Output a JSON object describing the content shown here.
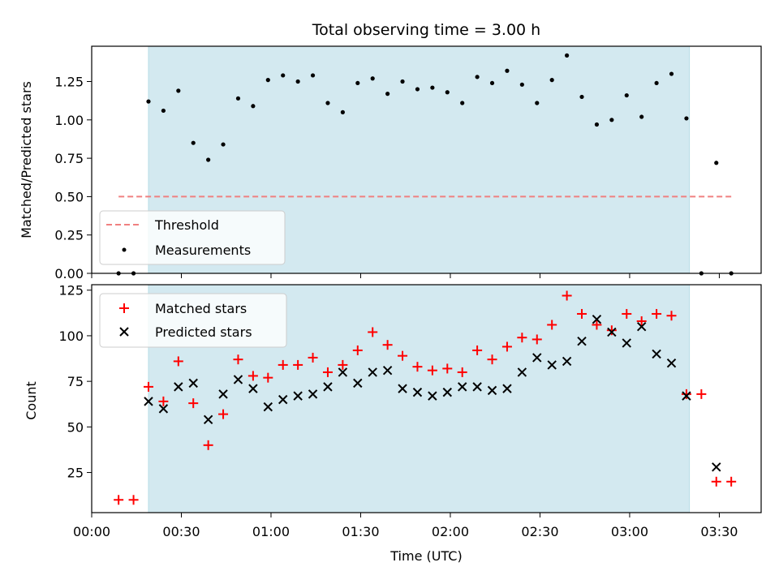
{
  "chart_data": [
    {
      "type": "scatter",
      "title": "Total observing time = 3.00 h",
      "ylabel": "Matched/Predicted stars",
      "xlabel": "",
      "xlim": [
        "00:00",
        "03:44"
      ],
      "ylim": [
        0,
        1.48
      ],
      "yticks": [
        "0.00",
        "0.25",
        "0.50",
        "0.75",
        "1.00",
        "1.25"
      ],
      "grid": false,
      "legend_position": "lower-left",
      "shaded_span": [
        "00:19",
        "03:20"
      ],
      "shaded_color": "#d3e9f0",
      "series": [
        {
          "name": "Threshold",
          "style": "dashed-line",
          "color": "#f08080",
          "x": [
            "00:09",
            "03:34"
          ],
          "y": [
            0.5,
            0.5
          ]
        },
        {
          "name": "Measurements",
          "style": "dot",
          "color": "#000000",
          "x": [
            "00:09",
            "00:14",
            "00:19",
            "00:24",
            "00:29",
            "00:34",
            "00:39",
            "00:44",
            "00:49",
            "00:54",
            "00:59",
            "01:04",
            "01:09",
            "01:14",
            "01:19",
            "01:24",
            "01:29",
            "01:34",
            "01:39",
            "01:44",
            "01:49",
            "01:54",
            "01:59",
            "02:04",
            "02:09",
            "02:14",
            "02:19",
            "02:24",
            "02:29",
            "02:34",
            "02:39",
            "02:44",
            "02:49",
            "02:54",
            "02:59",
            "03:04",
            "03:09",
            "03:14",
            "03:19",
            "03:24",
            "03:29",
            "03:34"
          ],
          "y": [
            0.0,
            0.0,
            1.12,
            1.06,
            1.19,
            0.85,
            0.74,
            0.84,
            1.14,
            1.09,
            1.26,
            1.29,
            1.25,
            1.29,
            1.11,
            1.05,
            1.24,
            1.27,
            1.17,
            1.25,
            1.2,
            1.21,
            1.18,
            1.11,
            1.28,
            1.24,
            1.32,
            1.23,
            1.11,
            1.26,
            1.42,
            1.15,
            0.97,
            1.0,
            1.16,
            1.02,
            1.24,
            1.3,
            1.01,
            0.0,
            0.72,
            0.0
          ]
        }
      ]
    },
    {
      "type": "scatter",
      "title": "",
      "ylabel": "Count",
      "xlabel": "Time (UTC)",
      "xlim": [
        "00:00",
        "03:44"
      ],
      "ylim": [
        3,
        128
      ],
      "yticks": [
        "25",
        "50",
        "75",
        "100",
        "125"
      ],
      "xticks": [
        "00:00",
        "00:30",
        "01:00",
        "01:30",
        "02:00",
        "02:30",
        "03:00",
        "03:30"
      ],
      "grid": false,
      "legend_position": "top-left",
      "shaded_span": [
        "00:19",
        "03:20"
      ],
      "shaded_color": "#d3e9f0",
      "series": [
        {
          "name": "Matched stars",
          "style": "plus",
          "color": "#ff0000",
          "x": [
            "00:09",
            "00:14",
            "00:19",
            "00:24",
            "00:29",
            "00:34",
            "00:39",
            "00:44",
            "00:49",
            "00:54",
            "00:59",
            "01:04",
            "01:09",
            "01:14",
            "01:19",
            "01:24",
            "01:29",
            "01:34",
            "01:39",
            "01:44",
            "01:49",
            "01:54",
            "01:59",
            "02:04",
            "02:09",
            "02:14",
            "02:19",
            "02:24",
            "02:29",
            "02:34",
            "02:39",
            "02:44",
            "02:49",
            "02:54",
            "02:59",
            "03:04",
            "03:09",
            "03:14",
            "03:19",
            "03:24",
            "03:29",
            "03:34"
          ],
          "y": [
            10,
            10,
            72,
            64,
            86,
            63,
            40,
            57,
            87,
            78,
            77,
            84,
            84,
            88,
            80,
            84,
            92,
            102,
            95,
            89,
            83,
            81,
            82,
            80,
            92,
            87,
            94,
            99,
            98,
            106,
            122,
            112,
            106,
            103,
            112,
            108,
            112,
            111,
            68,
            68,
            20,
            20
          ]
        },
        {
          "name": "Predicted stars",
          "style": "x",
          "color": "#000000",
          "x": [
            "00:19",
            "00:24",
            "00:29",
            "00:34",
            "00:39",
            "00:44",
            "00:49",
            "00:54",
            "00:59",
            "01:04",
            "01:09",
            "01:14",
            "01:19",
            "01:24",
            "01:29",
            "01:34",
            "01:39",
            "01:44",
            "01:49",
            "01:54",
            "01:59",
            "02:04",
            "02:09",
            "02:14",
            "02:19",
            "02:24",
            "02:29",
            "02:34",
            "02:39",
            "02:44",
            "02:49",
            "02:54",
            "02:59",
            "03:04",
            "03:09",
            "03:14",
            "03:19",
            "03:29"
          ],
          "y": [
            64,
            60,
            72,
            74,
            54,
            68,
            76,
            71,
            61,
            65,
            67,
            68,
            72,
            80,
            74,
            80,
            81,
            71,
            69,
            67,
            69,
            72,
            72,
            70,
            71,
            80,
            88,
            84,
            86,
            97,
            109,
            102,
            96,
            105,
            90,
            85,
            67,
            28
          ]
        }
      ]
    }
  ]
}
